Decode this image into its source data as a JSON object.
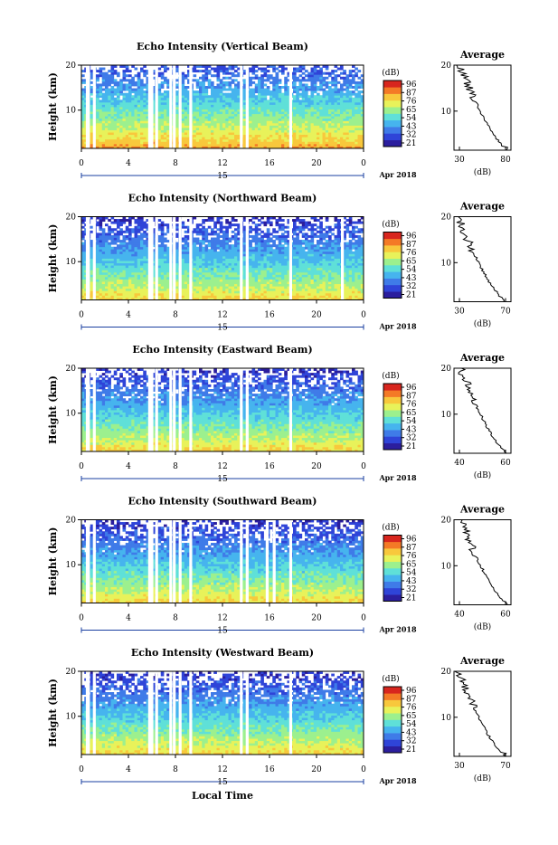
{
  "colors": {
    "scale": [
      "#2b1e9e",
      "#2f44d8",
      "#3f7be8",
      "#46b4ee",
      "#5fe0d8",
      "#9cf08e",
      "#e8f25a",
      "#f8c83c",
      "#f47a26",
      "#d8261e"
    ],
    "missing": "#ffffff",
    "axis": "#000000",
    "date_axis": "#1a3fa0"
  },
  "labels": {
    "ylabel": "Height (km)",
    "xlabel": "Local Time",
    "colorbar_unit": "(dB)",
    "avg_title": "Average",
    "avg_xlabel": "(dB)",
    "date_label": "Apr 2018",
    "date_tick": "15"
  },
  "chart_data": [
    {
      "type": "heatmap",
      "title": "Echo Intensity (Vertical Beam)",
      "xlabel": "",
      "ylabel": "Height (km)",
      "x_ticks": [
        "0",
        "4",
        "8",
        "12",
        "16",
        "20",
        "0"
      ],
      "y_ticks": [
        "20",
        "10"
      ],
      "xlim": [
        0,
        24
      ],
      "ylim": [
        1.5,
        20
      ],
      "colorbar_ticks": [
        "96",
        "87",
        "76",
        "65",
        "54",
        "43",
        "32",
        "21"
      ],
      "missing_hours": [
        0.5,
        0.6,
        1.1,
        5.8,
        6.0,
        6.4,
        7.6,
        7.9,
        8.4,
        9.3,
        13.6,
        14.1,
        17.8
      ],
      "surface_db": 82,
      "top_db": 33,
      "average": {
        "title": "Average",
        "xlabel": "(dB)",
        "x_ticks": [
          "30",
          "80"
        ],
        "xlim": [
          30,
          80
        ],
        "y_ticks": [
          "20",
          "10"
        ],
        "ylim": [
          1.5,
          20
        ],
        "surface_db": 78,
        "top_db": 35
      }
    },
    {
      "type": "heatmap",
      "title": "Echo Intensity (Northward Beam)",
      "xlabel": "",
      "ylabel": "Height (km)",
      "x_ticks": [
        "0",
        "4",
        "8",
        "12",
        "16",
        "20",
        "0"
      ],
      "y_ticks": [
        "20",
        "10"
      ],
      "xlim": [
        0,
        24
      ],
      "ylim": [
        1.5,
        20
      ],
      "colorbar_ticks": [
        "96",
        "87",
        "76",
        "65",
        "54",
        "43",
        "32",
        "21"
      ],
      "missing_hours": [
        0.5,
        0.6,
        1.1,
        5.8,
        6.0,
        6.4,
        7.6,
        7.9,
        8.4,
        9.3,
        13.6,
        14.1,
        17.8,
        22.2
      ],
      "surface_db": 76,
      "top_db": 28,
      "average": {
        "title": "Average",
        "xlabel": "(dB)",
        "x_ticks": [
          "30",
          "70"
        ],
        "xlim": [
          30,
          75
        ],
        "y_ticks": [
          "20",
          "10"
        ],
        "ylim": [
          1.5,
          20
        ],
        "surface_db": 72,
        "top_db": 33
      }
    },
    {
      "type": "heatmap",
      "title": "Echo Intensity (Eastward Beam)",
      "xlabel": "",
      "ylabel": "Height (km)",
      "x_ticks": [
        "0",
        "4",
        "8",
        "12",
        "16",
        "20",
        "0"
      ],
      "y_ticks": [
        "20",
        "10"
      ],
      "xlim": [
        0,
        24
      ],
      "ylim": [
        1.5,
        20
      ],
      "colorbar_ticks": [
        "96",
        "87",
        "76",
        "65",
        "54",
        "43",
        "32",
        "21"
      ],
      "missing_hours": [
        0.5,
        0.6,
        1.1,
        5.8,
        6.0,
        6.4,
        7.6,
        7.9,
        8.4,
        9.3,
        13.6,
        14.1,
        17.8
      ],
      "surface_db": 76,
      "top_db": 28,
      "average": {
        "title": "Average",
        "xlabel": "(dB)",
        "x_ticks": [
          "40",
          "60"
        ],
        "xlim": [
          28,
          72
        ],
        "y_ticks": [
          "20",
          "10"
        ],
        "ylim": [
          1.5,
          20
        ],
        "surface_db": 70,
        "top_db": 33
      }
    },
    {
      "type": "heatmap",
      "title": "Echo Intensity (Southward Beam)",
      "xlabel": "",
      "ylabel": "Height (km)",
      "x_ticks": [
        "0",
        "4",
        "8",
        "12",
        "16",
        "20",
        "0"
      ],
      "y_ticks": [
        "20",
        "10"
      ],
      "xlim": [
        0,
        24
      ],
      "ylim": [
        1.5,
        20
      ],
      "colorbar_ticks": [
        "96",
        "87",
        "76",
        "65",
        "54",
        "43",
        "32",
        "21"
      ],
      "missing_hours": [
        0.5,
        0.6,
        1.1,
        5.8,
        6.0,
        6.4,
        7.6,
        7.9,
        8.4,
        9.3,
        13.6,
        14.1,
        15.8,
        16.4,
        17.8
      ],
      "surface_db": 76,
      "top_db": 28,
      "average": {
        "title": "Average",
        "xlabel": "(dB)",
        "x_ticks": [
          "40",
          "60"
        ],
        "xlim": [
          28,
          72
        ],
        "y_ticks": [
          "20",
          "10"
        ],
        "ylim": [
          1.5,
          20
        ],
        "surface_db": 70,
        "top_db": 33
      }
    },
    {
      "type": "heatmap",
      "title": "Echo Intensity (Westward Beam)",
      "xlabel": "Local Time",
      "ylabel": "Height (km)",
      "x_ticks": [
        "0",
        "4",
        "8",
        "12",
        "16",
        "20",
        "0"
      ],
      "y_ticks": [
        "20",
        "10"
      ],
      "xlim": [
        0,
        24
      ],
      "ylim": [
        1.5,
        20
      ],
      "colorbar_ticks": [
        "96",
        "87",
        "76",
        "65",
        "54",
        "43",
        "32",
        "21"
      ],
      "missing_hours": [
        0.5,
        0.6,
        1.1,
        5.8,
        6.0,
        6.4,
        7.6,
        7.9,
        8.4,
        9.3,
        13.6,
        14.1,
        17.8
      ],
      "surface_db": 76,
      "top_db": 28,
      "average": {
        "title": "Average",
        "xlabel": "(dB)",
        "x_ticks": [
          "30",
          "70"
        ],
        "xlim": [
          30,
          75
        ],
        "y_ticks": [
          "20",
          "10"
        ],
        "ylim": [
          1.5,
          20
        ],
        "surface_db": 72,
        "top_db": 33
      }
    }
  ]
}
